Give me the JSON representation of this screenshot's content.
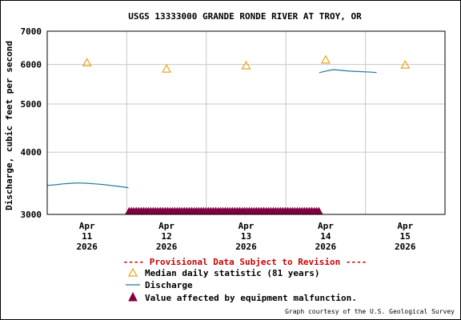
{
  "chart_data": {
    "type": "line",
    "title": "USGS 13333000 GRANDE RONDE RIVER AT TROY, OR",
    "ylabel": "Discharge, cubic feet per second",
    "y_scale": "log",
    "ylim": [
      3000,
      7000
    ],
    "y_ticks": [
      "3000",
      "4000",
      "5000",
      "6000",
      "7000"
    ],
    "y_tick_values": [
      3000,
      4000,
      5000,
      6000,
      7000
    ],
    "x_range": [
      10.5,
      15.5
    ],
    "x_ticks": [
      {
        "x": 11,
        "month": "Apr",
        "day": "11",
        "year": "2026"
      },
      {
        "x": 12,
        "month": "Apr",
        "day": "12",
        "year": "2026"
      },
      {
        "x": 13,
        "month": "Apr",
        "day": "13",
        "year": "2026"
      },
      {
        "x": 14,
        "month": "Apr",
        "day": "14",
        "year": "2026"
      },
      {
        "x": 15,
        "month": "Apr",
        "day": "15",
        "year": "2026"
      }
    ],
    "grid": true,
    "series": [
      {
        "name": "Discharge",
        "color": "#1a7a9e",
        "segments": [
          {
            "x": [
              10.5,
              10.6,
              10.7,
              10.8,
              10.9,
              11.0,
              11.1,
              11.2,
              11.3,
              11.4,
              11.52
            ],
            "y": [
              3430,
              3440,
              3455,
              3465,
              3470,
              3465,
              3455,
              3445,
              3430,
              3415,
              3395
            ]
          },
          {
            "x": [
              13.92,
              14.0,
              14.1,
              14.2,
              14.3,
              14.4,
              14.5,
              14.6,
              14.64
            ],
            "y": [
              5780,
              5820,
              5860,
              5840,
              5820,
              5810,
              5800,
              5790,
              5780
            ]
          }
        ]
      },
      {
        "name": "Median daily statistic (81 years)",
        "color": "#e8a317",
        "marker": "triangle-open",
        "x": [
          11,
          12,
          13,
          14,
          15
        ],
        "y": [
          6050,
          5880,
          5970,
          6130,
          5990
        ]
      },
      {
        "name": "Value affected by equipment malfunction.",
        "color": "#800040",
        "marker": "triangle-filled",
        "x_start": 11.53,
        "x_end": 13.93,
        "y": 3000
      }
    ]
  },
  "provisional": "---- Provisional Data Subject to Revision ----",
  "legend": {
    "median": "Median daily statistic (81 years)",
    "discharge": "Discharge",
    "malfunction": "Value affected by equipment malfunction."
  },
  "courtesy": "Graph courtesy of the U.S. Geological Survey"
}
